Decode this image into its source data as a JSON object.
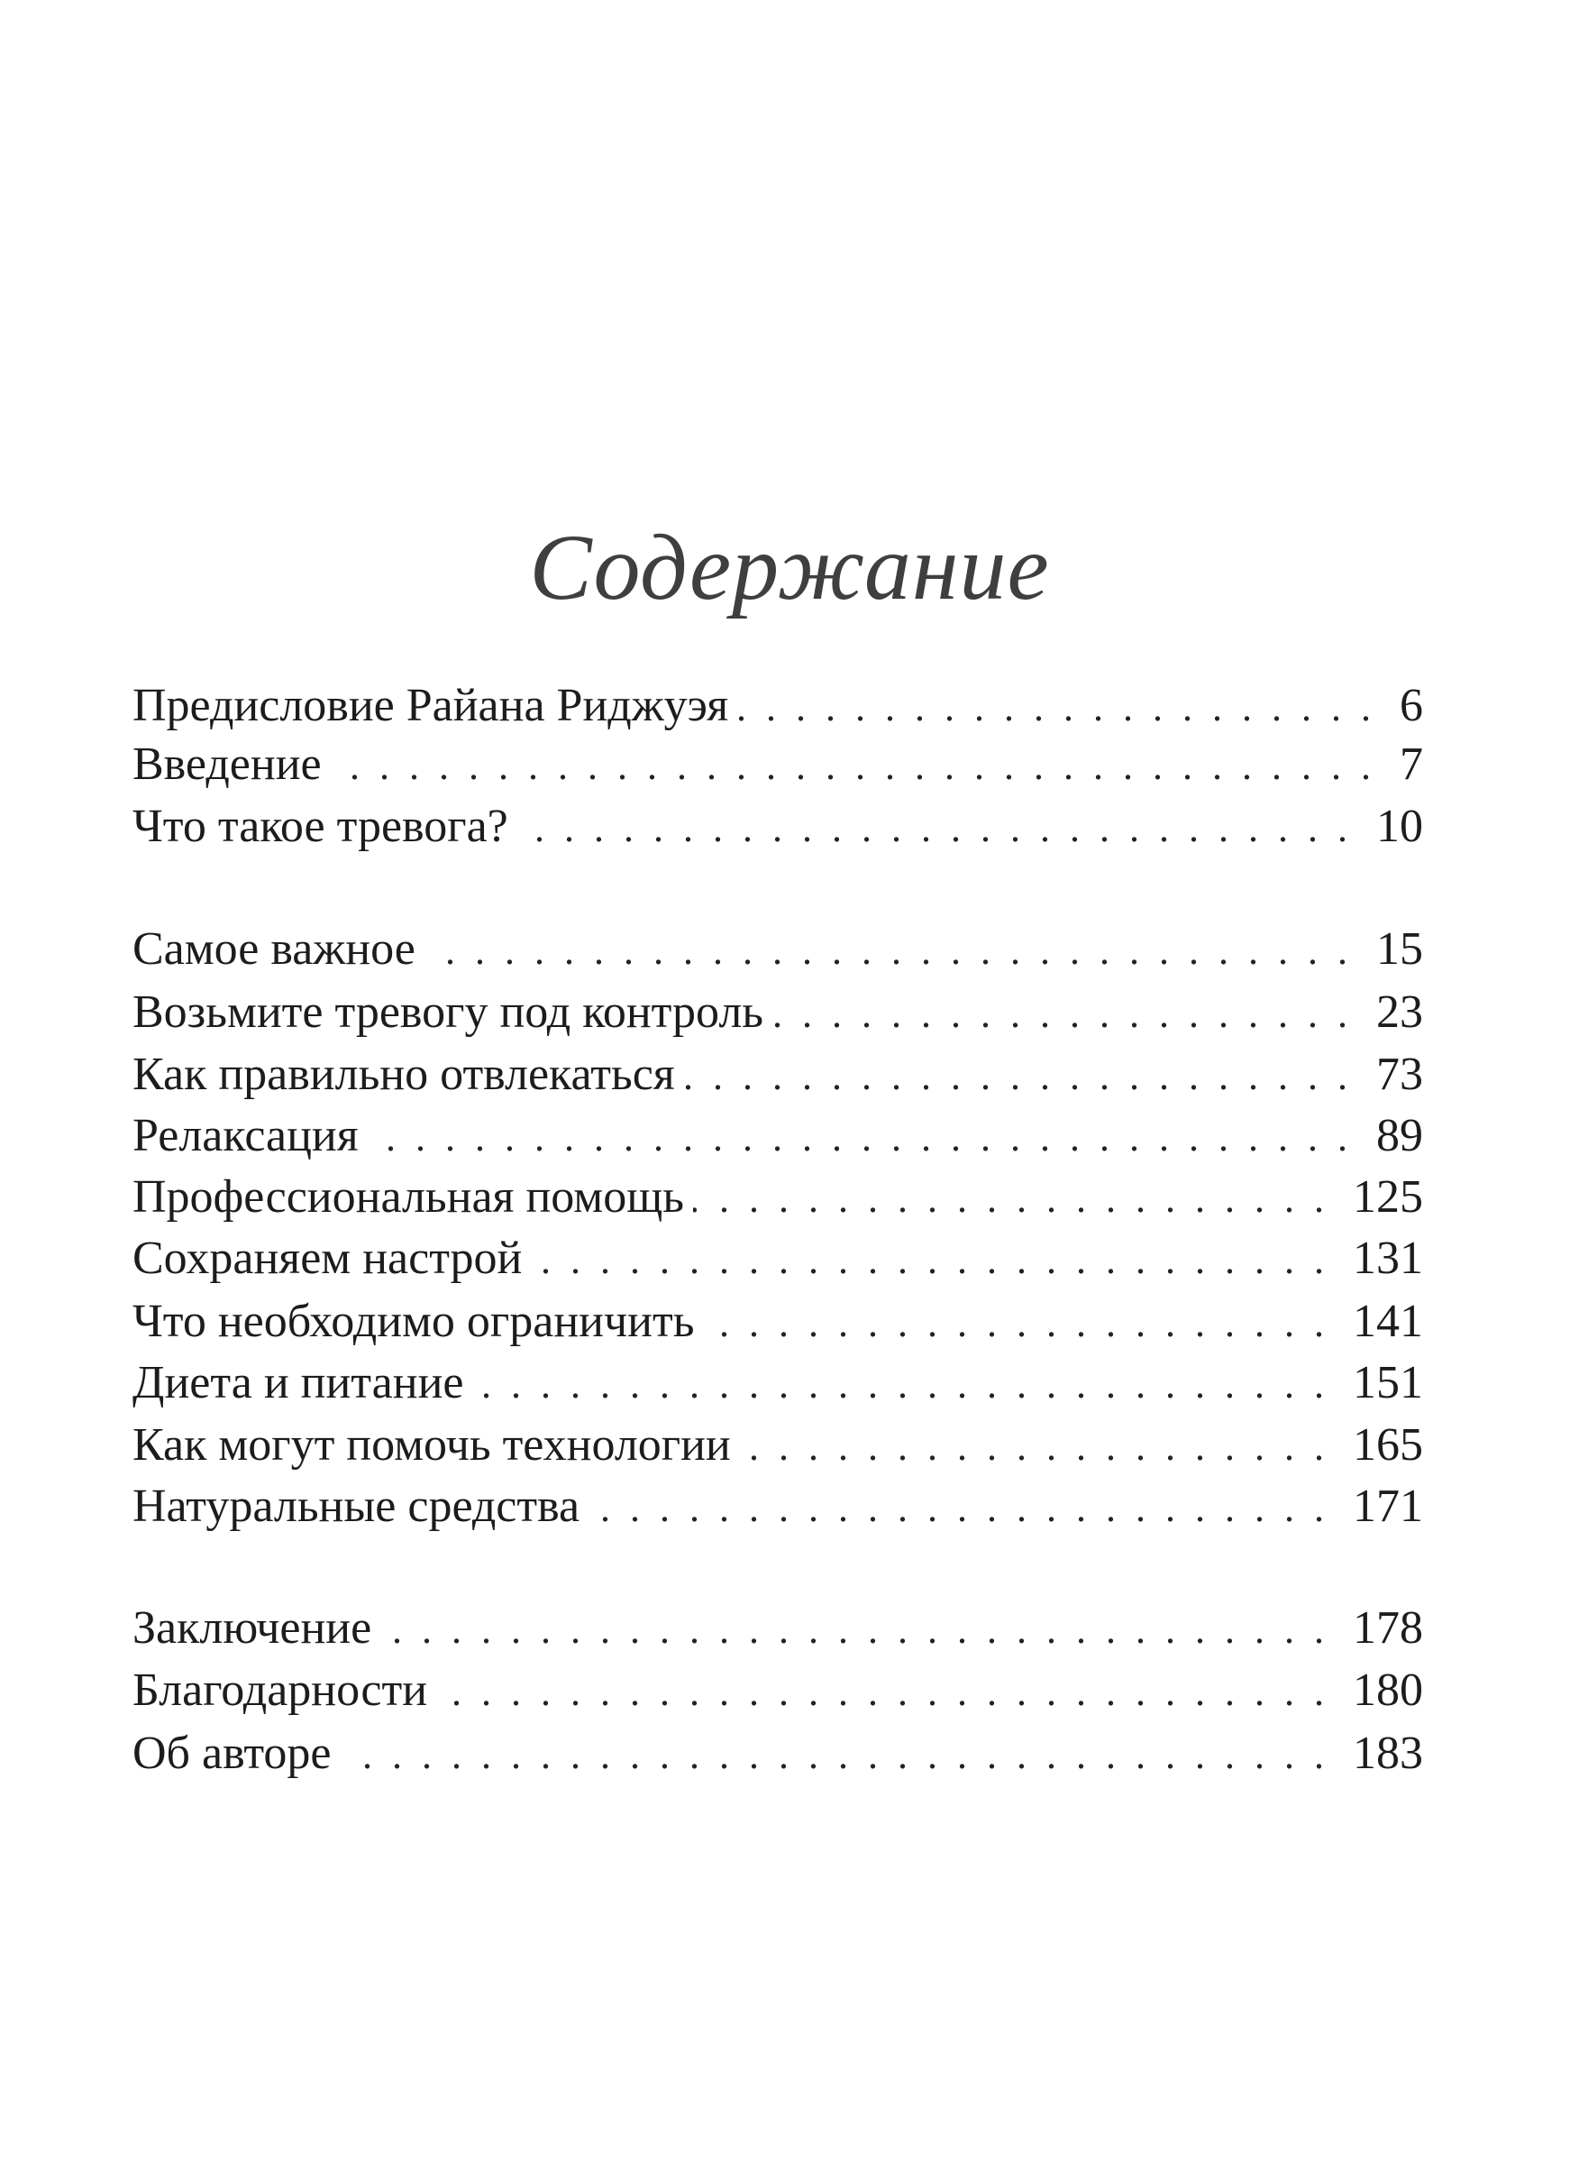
{
  "title": "Содержание",
  "groups": [
    [
      {
        "label": "Предисловие Райана Риджуэя",
        "page": "6"
      },
      {
        "label": "Введение",
        "page": "7"
      },
      {
        "label": "Что такое тревога?",
        "page": "10"
      }
    ],
    [
      {
        "label": "Самое важное",
        "page": "15"
      },
      {
        "label": "Возьмите тревогу под контроль",
        "page": "23"
      },
      {
        "label": "Как правильно отвлекаться",
        "page": "73"
      },
      {
        "label": "Релаксация",
        "page": "89"
      },
      {
        "label": "Профессиональная помощь",
        "page": "125"
      },
      {
        "label": "Сохраняем настрой",
        "page": "131"
      },
      {
        "label": "Что необходимо ограничить",
        "page": "141"
      },
      {
        "label": "Диета и питание",
        "page": "151"
      },
      {
        "label": "Как могут помочь технологии",
        "page": "165"
      },
      {
        "label": "Натуральные средства",
        "page": "171"
      }
    ],
    [
      {
        "label": "Заключение",
        "page": "178"
      },
      {
        "label": "Благодарности",
        "page": "180"
      },
      {
        "label": "Об авторе",
        "page": "183"
      }
    ]
  ]
}
